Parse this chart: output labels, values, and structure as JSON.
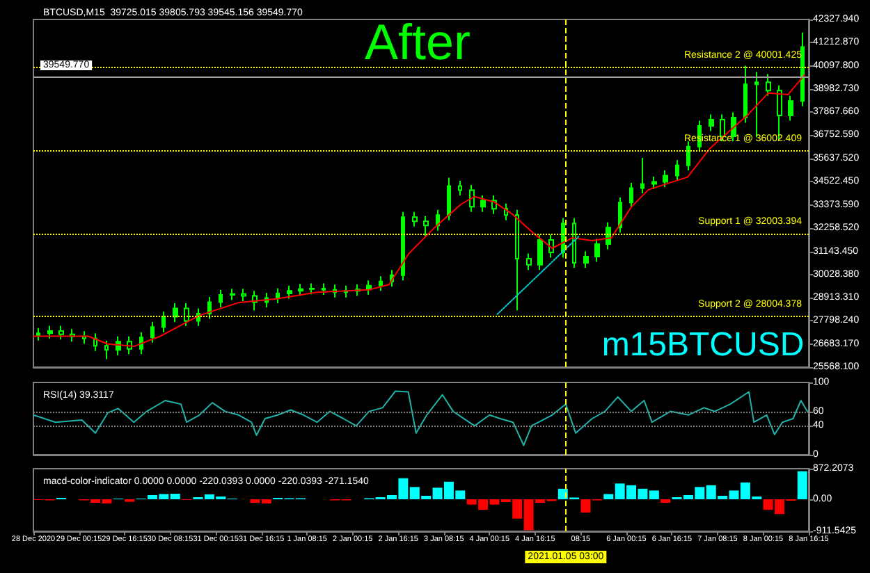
{
  "chart_data": [
    {
      "type": "candlestick",
      "title": "BTCUSD,M15  39725.015 39805.793 39545.156 39549.770",
      "annotations": [
        "After",
        "m15BTCUSD"
      ],
      "tick_labels": "y",
      "grid": false,
      "xlim": [
        "2020-12-28T08:15",
        "2021-01-08T16:15"
      ],
      "ylim": [
        25568.1,
        42327.94
      ],
      "yticks": [
        {
          "value": 25568.1,
          "label": "25568.100"
        },
        {
          "value": 26683.17,
          "label": "26683.170"
        },
        {
          "value": 27798.24,
          "label": "27798.240"
        },
        {
          "value": 28913.31,
          "label": "28913.310"
        },
        {
          "value": 30028.38,
          "label": "30028.380"
        },
        {
          "value": 31143.45,
          "label": "31143.450"
        },
        {
          "value": 32258.52,
          "label": "32258.520"
        },
        {
          "value": 33373.59,
          "label": "33373.590"
        },
        {
          "value": 34522.45,
          "label": "34522.450"
        },
        {
          "value": 35637.52,
          "label": "35637.520"
        },
        {
          "value": 36752.59,
          "label": "36752.590"
        },
        {
          "value": 37867.66,
          "label": "37867.660"
        },
        {
          "value": 38982.73,
          "label": "38982.730"
        },
        {
          "value": 40097.8,
          "label": "40097.800"
        },
        {
          "value": 41212.87,
          "label": "41212.870"
        },
        {
          "value": 42327.94,
          "label": "42327.940"
        }
      ],
      "series": [
        {
          "color": "#00ff00",
          "x": [
            "2020-12-28T10:00",
            "2020-12-28T14:00",
            "2020-12-28T18:00",
            "2020-12-28T22:00",
            "2020-12-29T02:00",
            "2020-12-29T06:00",
            "2020-12-29T10:00",
            "2020-12-29T14:00",
            "2020-12-29T18:00",
            "2020-12-29T22:00",
            "2020-12-30T02:00",
            "2020-12-30T06:00",
            "2020-12-30T10:00",
            "2020-12-30T14:00",
            "2020-12-30T18:00",
            "2020-12-30T22:00",
            "2020-12-31T02:00",
            "2020-12-31T06:00",
            "2020-12-31T10:00",
            "2020-12-31T14:00",
            "2020-12-31T18:00",
            "2020-12-31T22:00",
            "2021-01-01T02:00",
            "2021-01-01T06:00",
            "2021-01-01T10:00",
            "2021-01-01T14:00",
            "2021-01-01T18:00",
            "2021-01-01T22:00",
            "2021-01-02T02:00",
            "2021-01-02T06:00",
            "2021-01-02T10:00",
            "2021-01-02T14:00",
            "2021-01-02T18:00",
            "2021-01-02T22:00",
            "2021-01-03T02:00",
            "2021-01-03T06:00",
            "2021-01-03T10:00",
            "2021-01-03T14:00",
            "2021-01-03T18:00",
            "2021-01-03T22:00",
            "2021-01-04T02:00",
            "2021-01-04T06:00",
            "2021-01-04T10:00",
            "2021-01-04T14:00",
            "2021-01-04T18:00",
            "2021-01-04T22:00",
            "2021-01-05T02:00",
            "2021-01-05T06:00",
            "2021-01-05T10:00",
            "2021-01-05T14:00",
            "2021-01-05T18:00",
            "2021-01-05T22:00",
            "2021-01-06T02:00",
            "2021-01-06T06:00",
            "2021-01-06T10:00",
            "2021-01-06T14:00",
            "2021-01-06T18:00",
            "2021-01-06T22:00",
            "2021-01-07T02:00",
            "2021-01-07T06:00",
            "2021-01-07T10:00",
            "2021-01-07T14:00",
            "2021-01-07T18:00",
            "2021-01-07T22:00",
            "2021-01-08T02:00",
            "2021-01-08T06:00",
            "2021-01-08T10:00",
            "2021-01-08T14:00"
          ],
          "ohlc": [
            [
              27100,
              27450,
              26850,
              27200
            ],
            [
              27200,
              27560,
              26950,
              27310
            ],
            [
              27310,
              27560,
              26900,
              27150
            ],
            [
              27150,
              27400,
              26800,
              27050
            ],
            [
              27050,
              27300,
              26700,
              26950
            ],
            [
              26950,
              27200,
              26350,
              26600
            ],
            [
              26600,
              26850,
              25950,
              26400
            ],
            [
              26400,
              27050,
              26150,
              26800
            ],
            [
              26800,
              27050,
              26200,
              26450
            ],
            [
              26450,
              27250,
              26200,
              27000
            ],
            [
              27000,
              27750,
              26750,
              27500
            ],
            [
              27500,
              28250,
              27250,
              28000
            ],
            [
              28000,
              28650,
              27750,
              28400
            ],
            [
              28400,
              28650,
              27550,
              27800
            ],
            [
              27800,
              28400,
              27550,
              28150
            ],
            [
              28150,
              28950,
              27900,
              28700
            ],
            [
              28700,
              29300,
              28450,
              29050
            ],
            [
              29050,
              29350,
              28800,
              29100
            ],
            [
              29100,
              29350,
              28750,
              29000
            ],
            [
              29000,
              29250,
              28300,
              28700
            ],
            [
              28700,
              29150,
              28450,
              28900
            ],
            [
              28900,
              29370,
              28650,
              29120
            ],
            [
              29120,
              29500,
              28870,
              29250
            ],
            [
              29250,
              29580,
              29000,
              29330
            ],
            [
              29330,
              29610,
              29080,
              29360
            ],
            [
              29360,
              29610,
              29050,
              29300
            ],
            [
              29300,
              29550,
              28930,
              29180
            ],
            [
              29180,
              29500,
              28930,
              29250
            ],
            [
              29250,
              29560,
              29000,
              29310
            ],
            [
              29310,
              29750,
              29060,
              29500
            ],
            [
              29500,
              29950,
              29250,
              29700
            ],
            [
              29700,
              30250,
              29450,
              30000
            ],
            [
              30000,
              33050,
              29750,
              32800
            ],
            [
              32800,
              33050,
              32350,
              32600
            ],
            [
              32600,
              32850,
              31900,
              32400
            ],
            [
              32400,
              33150,
              32150,
              32900
            ],
            [
              32900,
              34700,
              32650,
              34300
            ],
            [
              34300,
              34550,
              33850,
              34100
            ],
            [
              34100,
              34350,
              33050,
              33300
            ],
            [
              33300,
              33850,
              33050,
              33600
            ],
            [
              33600,
              33850,
              32950,
              33200
            ],
            [
              33200,
              33450,
              32650,
              32900
            ],
            [
              32900,
              33150,
              28310,
              30800
            ],
            [
              30800,
              31050,
              30250,
              30500
            ],
            [
              30500,
              31950,
              30250,
              31700
            ],
            [
              31700,
              31950,
              30850,
              31100
            ],
            [
              31100,
              32750,
              30850,
              32500
            ],
            [
              32500,
              32750,
              30350,
              30600
            ],
            [
              30600,
              31150,
              30350,
              30900
            ],
            [
              30900,
              31750,
              30650,
              31500
            ],
            [
              31500,
              32550,
              31250,
              32300
            ],
            [
              32300,
              33750,
              32050,
              33500
            ],
            [
              33500,
              34450,
              33250,
              34200
            ],
            [
              34200,
              35660,
              33950,
              34400
            ],
            [
              34400,
              34750,
              34150,
              34500
            ],
            [
              34500,
              35050,
              34250,
              34800
            ],
            [
              34800,
              35550,
              34550,
              35300
            ],
            [
              35300,
              36450,
              35050,
              36200
            ],
            [
              36200,
              37450,
              35950,
              37200
            ],
            [
              37200,
              37750,
              36950,
              37500
            ],
            [
              37500,
              37750,
              36450,
              36700
            ],
            [
              36700,
              37850,
              36450,
              37600
            ],
            [
              37600,
              40100,
              37350,
              39200
            ],
            [
              39200,
              39800,
              36650,
              39300
            ],
            [
              39300,
              39700,
              38650,
              38900
            ],
            [
              38900,
              39150,
              36530,
              37700
            ],
            [
              37700,
              38650,
              37450,
              38400
            ],
            [
              38400,
              41700,
              38150,
              41000
            ]
          ]
        },
        {
          "type": "line",
          "color": "#ff0000",
          "x": [
            "2020-12-28T08:15",
            "2020-12-29T03:30",
            "2020-12-29T10:15",
            "2020-12-29T19:30",
            "2020-12-30T04:45",
            "2020-12-30T18:30",
            "2020-12-31T08:15",
            "2020-12-31T22:00",
            "2021-01-01T11:45",
            "2021-01-02T06:00",
            "2021-01-02T13:00",
            "2021-01-02T20:00",
            "2021-01-03T05:00",
            "2021-01-03T14:15",
            "2021-01-03T19:00",
            "2021-01-04T01:45",
            "2021-01-04T08:30",
            "2021-01-04T15:30",
            "2021-01-04T22:15",
            "2021-01-05T05:15",
            "2021-01-05T12:15",
            "2021-01-05T19:00",
            "2021-01-06T02:00",
            "2021-01-06T08:00",
            "2021-01-06T21:45",
            "2021-01-07T05:30",
            "2021-01-07T19:15",
            "2021-01-08T02:00",
            "2021-01-08T09:00",
            "2021-01-08T14:45"
          ],
          "values": [
            27060,
            27060,
            26690,
            26570,
            27060,
            28060,
            28680,
            28870,
            29180,
            29300,
            29550,
            31050,
            32300,
            33420,
            33790,
            33540,
            32920,
            32050,
            31300,
            31800,
            31670,
            31800,
            33290,
            34120,
            34730,
            36100,
            37780,
            38780,
            38710,
            39650
          ]
        },
        {
          "type": "line",
          "color": "#00ced1",
          "line_style": "dotted",
          "x": [
            "2021-01-04T03:00",
            "2021-01-05T07:30"
          ],
          "values": [
            28120,
            31860
          ]
        }
      ],
      "ref_lines": [
        {
          "axis": "y",
          "value": 40001.425,
          "label": "Resistance 2 @ 40001.425",
          "color": "#ffff00",
          "line_style": "dotted"
        },
        {
          "axis": "y",
          "value": 36002.409,
          "label": "Resistance 1 @ 36002.409",
          "color": "#ffff00",
          "line_style": "dotted"
        },
        {
          "axis": "y",
          "value": 32003.394,
          "label": "Support 1 @ 32003.394",
          "color": "#ffff00",
          "line_style": "dotted"
        },
        {
          "axis": "y",
          "value": 28004.378,
          "label": "Support 2 @ 28004.378",
          "color": "#ffff00",
          "line_style": "dotted"
        },
        {
          "axis": "y",
          "value": 39549.77,
          "label": "39549.770",
          "color": "#a0a0a0",
          "line_style": "solid"
        },
        {
          "axis": "x",
          "value": "2021-01-05T03:00",
          "color": "#ffff00",
          "line_style": "dashed"
        }
      ]
    },
    {
      "type": "line",
      "title": "RSI(14) 39.3117",
      "tick_labels": "y",
      "grid": false,
      "xlim": [
        "2020-12-28T08:15",
        "2021-01-08T16:15"
      ],
      "ylim": [
        0,
        100
      ],
      "yticks": [
        0,
        40,
        60,
        100
      ],
      "series": [
        {
          "color": "#20b2aa",
          "x": [
            "2020-12-28T08:15",
            "2020-12-28T16:00",
            "2020-12-29T01:15",
            "2020-12-29T06:00",
            "2020-12-29T10:20",
            "2020-12-29T14:00",
            "2020-12-29T19:30",
            "2020-12-30T00:00",
            "2020-12-30T06:30",
            "2020-12-30T12:00",
            "2020-12-30T14:00",
            "2020-12-30T18:30",
            "2020-12-30T23:00",
            "2020-12-31T03:30",
            "2020-12-31T08:15",
            "2020-12-31T12:45",
            "2020-12-31T14:30",
            "2020-12-31T17:30",
            "2020-12-31T22:00",
            "2021-01-01T02:30",
            "2021-01-01T07:00",
            "2021-01-01T11:45",
            "2021-01-01T16:15",
            "2021-01-01T21:00",
            "2021-01-02T01:30",
            "2021-01-02T06:00",
            "2021-01-02T10:45",
            "2021-01-02T15:15",
            "2021-01-02T19:45",
            "2021-01-02T22:30",
            "2021-01-03T02:15",
            "2021-01-03T07:45",
            "2021-01-03T11:30",
            "2021-01-03T19:00",
            "2021-01-04T00:15",
            "2021-01-04T04:00",
            "2021-01-04T08:30",
            "2021-01-04T12:15",
            "2021-01-04T15:00",
            "2021-01-04T22:15",
            "2021-01-05T03:00",
            "2021-01-05T06:30",
            "2021-01-05T12:15",
            "2021-01-05T16:45",
            "2021-01-05T21:15",
            "2021-01-06T02:00",
            "2021-01-06T06:30",
            "2021-01-06T09:15",
            "2021-01-06T15:45",
            "2021-01-06T22:00",
            "2021-01-07T03:30",
            "2021-01-07T07:15",
            "2021-01-07T12:45",
            "2021-01-07T19:15",
            "2021-01-07T21:00",
            "2021-01-08T01:30",
            "2021-01-08T04:15",
            "2021-01-08T07:00",
            "2021-01-08T10:45",
            "2021-01-08T13:30",
            "2021-01-08T15:45"
          ],
          "values": [
            55,
            45,
            48,
            30,
            58,
            64,
            45,
            60,
            75,
            70,
            45,
            55,
            72,
            60,
            55,
            45,
            27,
            50,
            55,
            62,
            55,
            45,
            60,
            50,
            40,
            60,
            65,
            88,
            87,
            30,
            55,
            83,
            60,
            40,
            55,
            50,
            45,
            13,
            40,
            55,
            70,
            30,
            50,
            60,
            80,
            60,
            75,
            45,
            60,
            55,
            65,
            60,
            70,
            87,
            45,
            55,
            28,
            45,
            50,
            75,
            60
          ]
        }
      ],
      "ref_lines": [
        {
          "axis": "y",
          "value": 60,
          "color": "#808080",
          "line_style": "dotted"
        },
        {
          "axis": "y",
          "value": 40,
          "color": "#808080",
          "line_style": "dotted"
        },
        {
          "axis": "x",
          "value": "2021-01-05T03:00",
          "color": "#ffff00",
          "line_style": "dashed"
        }
      ]
    },
    {
      "type": "bar",
      "title": "macd-color-indicator 0.0000 0.0000 -220.0393 0.0000 -220.0393 -271.1540",
      "grid": false,
      "xlim": [
        "2020-12-28T08:15",
        "2021-01-08T16:15"
      ],
      "ylim": [
        -911.5425,
        872.2073
      ],
      "yticks": [
        {
          "value": -911.5425,
          "label": "-911.5425"
        },
        {
          "value": 0,
          "label": "0.00"
        },
        {
          "value": 872.2073,
          "label": "872.2073"
        }
      ],
      "xticks": [
        {
          "value": "2020-12-28T08:15",
          "label": "28 Dec 2020"
        },
        {
          "value": "2020-12-29T00:15",
          "label": "29 Dec 00:15"
        },
        {
          "value": "2020-12-29T16:15",
          "label": "29 Dec 16:15"
        },
        {
          "value": "2020-12-30T08:15",
          "label": "30 Dec 08:15"
        },
        {
          "value": "2020-12-31T00:15",
          "label": "31 Dec 00:15"
        },
        {
          "value": "2020-12-31T16:15",
          "label": "31 Dec 16:15"
        },
        {
          "value": "2021-01-01T08:15",
          "label": "1 Jan 08:15"
        },
        {
          "value": "2021-01-02T00:15",
          "label": "2 Jan 00:15"
        },
        {
          "value": "2021-01-02T16:15",
          "label": "2 Jan 16:15"
        },
        {
          "value": "2021-01-03T08:15",
          "label": "3 Jan 08:15"
        },
        {
          "value": "2021-01-04T00:15",
          "label": "4 Jan 00:15"
        },
        {
          "value": "2021-01-04T16:15",
          "label": "4 Jan 16:15"
        },
        {
          "value": "2021-01-05T08:15",
          "label": "08:15"
        },
        {
          "value": "2021-01-06T00:15",
          "label": "6 Jan 00:15"
        },
        {
          "value": "2021-01-06T16:15",
          "label": "6 Jan 16:15"
        },
        {
          "value": "2021-01-07T08:15",
          "label": "7 Jan 08:15"
        },
        {
          "value": "2021-01-08T00:15",
          "label": "8 Jan 00:15"
        },
        {
          "value": "2021-01-08T16:15",
          "label": "8 Jan 16:15"
        }
      ],
      "series": [
        {
          "x": [
            "2020-12-28T10:00",
            "2020-12-28T14:00",
            "2020-12-28T18:00",
            "2020-12-28T22:00",
            "2020-12-29T02:00",
            "2020-12-29T06:00",
            "2020-12-29T10:00",
            "2020-12-29T14:00",
            "2020-12-29T18:00",
            "2020-12-29T22:00",
            "2020-12-30T02:00",
            "2020-12-30T06:00",
            "2020-12-30T10:00",
            "2020-12-30T14:00",
            "2020-12-30T18:00",
            "2020-12-30T22:00",
            "2020-12-31T02:00",
            "2020-12-31T06:00",
            "2020-12-31T10:00",
            "2020-12-31T14:00",
            "2020-12-31T18:00",
            "2020-12-31T22:00",
            "2021-01-01T02:00",
            "2021-01-01T06:00",
            "2021-01-01T10:00",
            "2021-01-01T14:00",
            "2021-01-01T18:00",
            "2021-01-01T22:00",
            "2021-01-02T02:00",
            "2021-01-02T06:00",
            "2021-01-02T10:00",
            "2021-01-02T14:00",
            "2021-01-02T18:00",
            "2021-01-02T22:00",
            "2021-01-03T02:00",
            "2021-01-03T06:00",
            "2021-01-03T10:00",
            "2021-01-03T14:00",
            "2021-01-03T18:00",
            "2021-01-03T22:00",
            "2021-01-04T02:00",
            "2021-01-04T06:00",
            "2021-01-04T10:00",
            "2021-01-04T14:00",
            "2021-01-04T18:00",
            "2021-01-04T22:00",
            "2021-01-05T02:00",
            "2021-01-05T06:00",
            "2021-01-05T10:00",
            "2021-01-05T14:00",
            "2021-01-05T18:00",
            "2021-01-05T22:00",
            "2021-01-06T02:00",
            "2021-01-06T06:00",
            "2021-01-06T10:00",
            "2021-01-06T14:00",
            "2021-01-06T18:00",
            "2021-01-06T22:00",
            "2021-01-07T02:00",
            "2021-01-07T06:00",
            "2021-01-07T10:00",
            "2021-01-07T14:00",
            "2021-01-07T18:00",
            "2021-01-07T22:00",
            "2021-01-08T02:00",
            "2021-01-08T06:00",
            "2021-01-08T10:00",
            "2021-01-08T14:00"
          ],
          "values": [
            -20,
            -30,
            40,
            0,
            -30,
            -100,
            -120,
            20,
            -70,
            20,
            120,
            150,
            160,
            -20,
            60,
            140,
            80,
            20,
            0,
            -100,
            -120,
            40,
            30,
            30,
            null,
            null,
            -30,
            -30,
            0,
            30,
            60,
            120,
            600,
            350,
            100,
            330,
            500,
            250,
            -150,
            -300,
            -150,
            -80,
            -550,
            -880,
            -100,
            -50,
            300,
            50,
            -380,
            -30,
            150,
            450,
            400,
            300,
            250,
            -100,
            60,
            120,
            350,
            400,
            100,
            250,
            480,
            80,
            -300,
            -420,
            -40,
            800
          ],
          "colors": [
            "#ff0000",
            "#ff0000",
            "#00ffff",
            "#00ffff",
            "#ff0000",
            "#ff0000",
            "#ff0000",
            "#00ffff",
            "#ff0000",
            "#00ffff",
            "#00ffff",
            "#00ffff",
            "#00ffff",
            "#ff0000",
            "#00ffff",
            "#00ffff",
            "#00ffff",
            "#00ffff",
            "#00ffff",
            "#ff0000",
            "#ff0000",
            "#00ffff",
            "#00ffff",
            "#00ffff",
            "#00ffff",
            "#00ffff",
            "#ff0000",
            "#ff0000",
            "#00ffff",
            "#00ffff",
            "#00ffff",
            "#00ffff",
            "#00ffff",
            "#00ffff",
            "#00ffff",
            "#00ffff",
            "#00ffff",
            "#00ffff",
            "#ff0000",
            "#ff0000",
            "#ff0000",
            "#ff0000",
            "#ff0000",
            "#ff0000",
            "#ff0000",
            "#ff0000",
            "#00ffff",
            "#00ffff",
            "#ff0000",
            "#ff0000",
            "#00ffff",
            "#00ffff",
            "#00ffff",
            "#00ffff",
            "#00ffff",
            "#ff0000",
            "#00ffff",
            "#00ffff",
            "#00ffff",
            "#00ffff",
            "#00ffff",
            "#00ffff",
            "#00ffff",
            "#00ffff",
            "#ff0000",
            "#ff0000",
            "#ff0000",
            "#00ffff"
          ]
        }
      ],
      "ref_lines": [
        {
          "axis": "x",
          "value": "2021-01-05T03:00",
          "label": "2021.01.05 03:00",
          "color": "#ffff00",
          "line_style": "dashed"
        }
      ]
    }
  ]
}
